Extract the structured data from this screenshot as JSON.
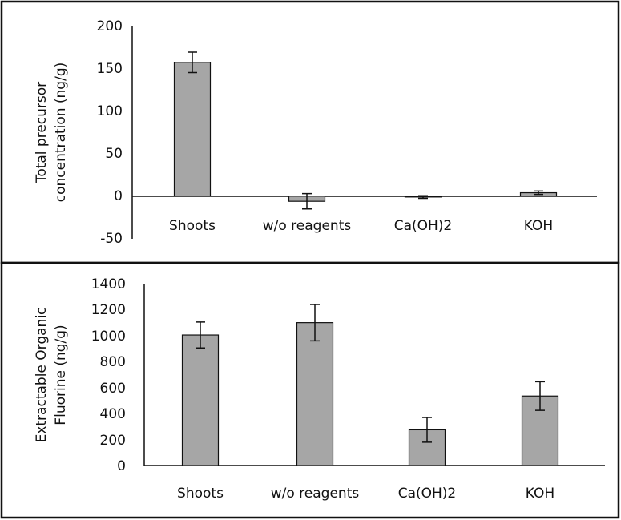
{
  "chart_data": [
    {
      "type": "bar",
      "title": "",
      "xlabel": "",
      "ylabel_lines": [
        "Total precursor",
        "concentration (ng/g)"
      ],
      "categories": [
        "Shoots",
        "w/o reagents",
        "Ca(OH)2",
        "KOH"
      ],
      "values": [
        157,
        -6,
        -1,
        4
      ],
      "errors": [
        12,
        9,
        1.5,
        2
      ],
      "ylim": [
        -50,
        200
      ],
      "yticks": [
        -50,
        0,
        50,
        100,
        150,
        200
      ],
      "grid": false,
      "bar_color": "#a6a6a6",
      "bar_outline": "#111111"
    },
    {
      "type": "bar",
      "title": "",
      "xlabel": "",
      "ylabel_lines": [
        "Extractable Organic",
        "Fluorine (ng/g)"
      ],
      "categories": [
        "Shoots",
        "w/o reagents",
        "Ca(OH)2",
        "KOH"
      ],
      "values": [
        1005,
        1100,
        275,
        535
      ],
      "errors": [
        100,
        140,
        95,
        110
      ],
      "ylim": [
        0,
        1400
      ],
      "yticks": [
        0,
        200,
        400,
        600,
        800,
        1000,
        1200,
        1400
      ],
      "grid": false,
      "bar_color": "#a6a6a6",
      "bar_outline": "#111111"
    }
  ]
}
